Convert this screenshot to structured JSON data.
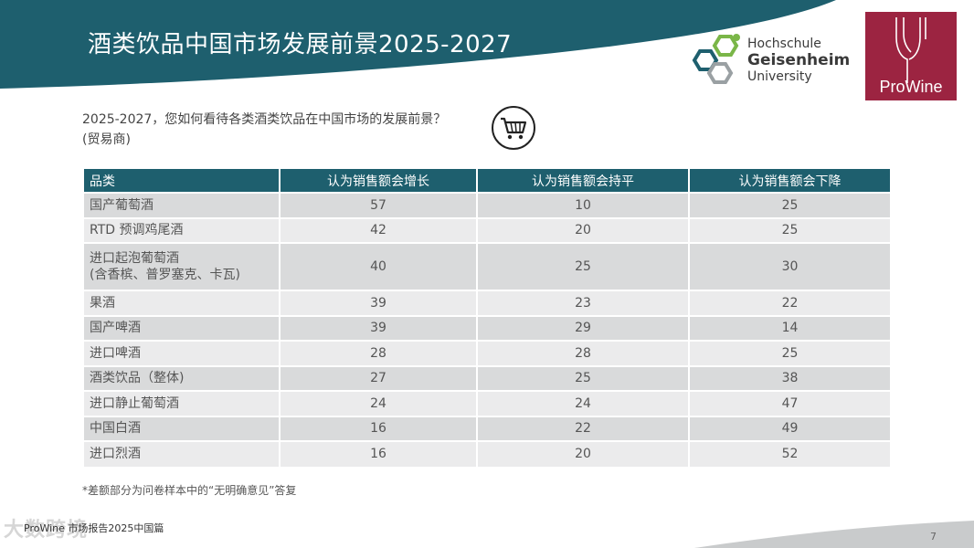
{
  "title": "酒类饮品中国市场发展前景2025-2027",
  "logos": {
    "university": [
      "Hochschule",
      "Geisenheim",
      "University"
    ],
    "prowine": "ProWine"
  },
  "question": {
    "line1": "2025-2027，您如何看待各类酒类饮品在中国市场的发展前景？",
    "line2": "(贸易商)"
  },
  "table": {
    "headers": [
      "品类",
      "认为销售额会增长",
      "认为销售额会持平",
      "认为销售额会下降"
    ],
    "rows": [
      {
        "category": "国产葡萄酒",
        "increase": "57",
        "flat": "10",
        "decrease": "25"
      },
      {
        "category": "RTD 预调鸡尾酒",
        "increase": "42",
        "flat": "20",
        "decrease": "25"
      },
      {
        "category": "进口起泡葡萄酒",
        "category_line2": "(含香槟、普罗塞克、卡瓦)",
        "increase": "40",
        "flat": "25",
        "decrease": "30"
      },
      {
        "category": "果酒",
        "increase": "39",
        "flat": "23",
        "decrease": "22"
      },
      {
        "category": "国产啤酒",
        "increase": "39",
        "flat": "29",
        "decrease": "14"
      },
      {
        "category": "进口啤酒",
        "increase": "28",
        "flat": "28",
        "decrease": "25"
      },
      {
        "category": "酒类饮品（整体)",
        "increase": "27",
        "flat": "25",
        "decrease": "38"
      },
      {
        "category": "进口静止葡萄酒",
        "increase": "24",
        "flat": "24",
        "decrease": "47"
      },
      {
        "category": "中国白酒",
        "increase": "16",
        "flat": "22",
        "decrease": "49"
      },
      {
        "category": "进口烈酒",
        "increase": "16",
        "flat": "20",
        "decrease": "52"
      }
    ]
  },
  "footnote": "*差额部分为问卷样本中的“无明确意见”答复",
  "source": "ProWine 市场报告2025中国篇",
  "watermark": "大数跨境",
  "page_number": "7",
  "colors": {
    "teal": "#1e5f6e",
    "prowine": "#9c2441",
    "green": "#7ab648",
    "gray": "#9aa0a3"
  },
  "icons": [
    "shopping-cart-icon",
    "hexagon-molecule-icon",
    "wine-glass-icon"
  ]
}
